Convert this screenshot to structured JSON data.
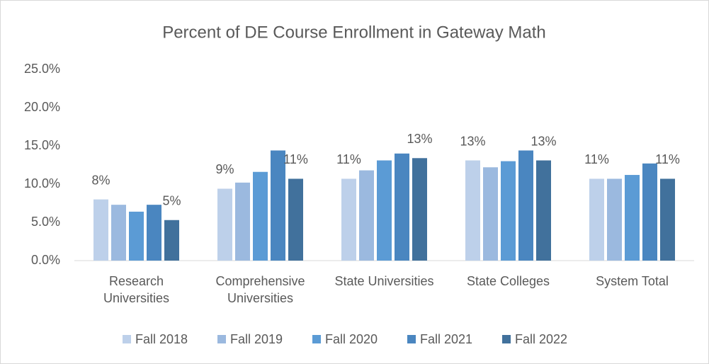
{
  "chart_data": {
    "type": "bar",
    "title": "Percent of DE Course Enrollment in Gateway Math",
    "categories": [
      "Research Universities",
      "Comprehensive Universities",
      "State Universities",
      "State Colleges",
      "System Total"
    ],
    "series": [
      {
        "name": "Fall 2018",
        "color": "#bdd0ea",
        "values": [
          8.0,
          9.4,
          10.7,
          13.1,
          10.7
        ],
        "value_labels": [
          "8%",
          "9%",
          "11%",
          "13%",
          "11%"
        ]
      },
      {
        "name": "Fall 2019",
        "color": "#9bb9df",
        "values": [
          7.3,
          10.2,
          11.8,
          12.2,
          10.7
        ]
      },
      {
        "name": "Fall 2020",
        "color": "#5b9bd5",
        "values": [
          6.4,
          11.6,
          13.1,
          13.0,
          11.2
        ]
      },
      {
        "name": "Fall 2021",
        "color": "#4a86c0",
        "values": [
          7.3,
          14.4,
          14.0,
          14.4,
          12.7
        ]
      },
      {
        "name": "Fall 2022",
        "color": "#41719c",
        "values": [
          5.3,
          10.7,
          13.4,
          13.1,
          10.7
        ],
        "value_labels": [
          "5%",
          "11%",
          "13%",
          "13%",
          "11%"
        ]
      }
    ],
    "ylim": [
      0,
      25
    ],
    "yticks": [
      {
        "value": 0,
        "label": "0.0%"
      },
      {
        "value": 5,
        "label": "5.0%"
      },
      {
        "value": 10,
        "label": "10.0%"
      },
      {
        "value": 15,
        "label": "15.0%"
      },
      {
        "value": 20,
        "label": "20.0%"
      },
      {
        "value": 25,
        "label": "25.0%"
      }
    ],
    "grid": false,
    "legend": "bottom"
  }
}
